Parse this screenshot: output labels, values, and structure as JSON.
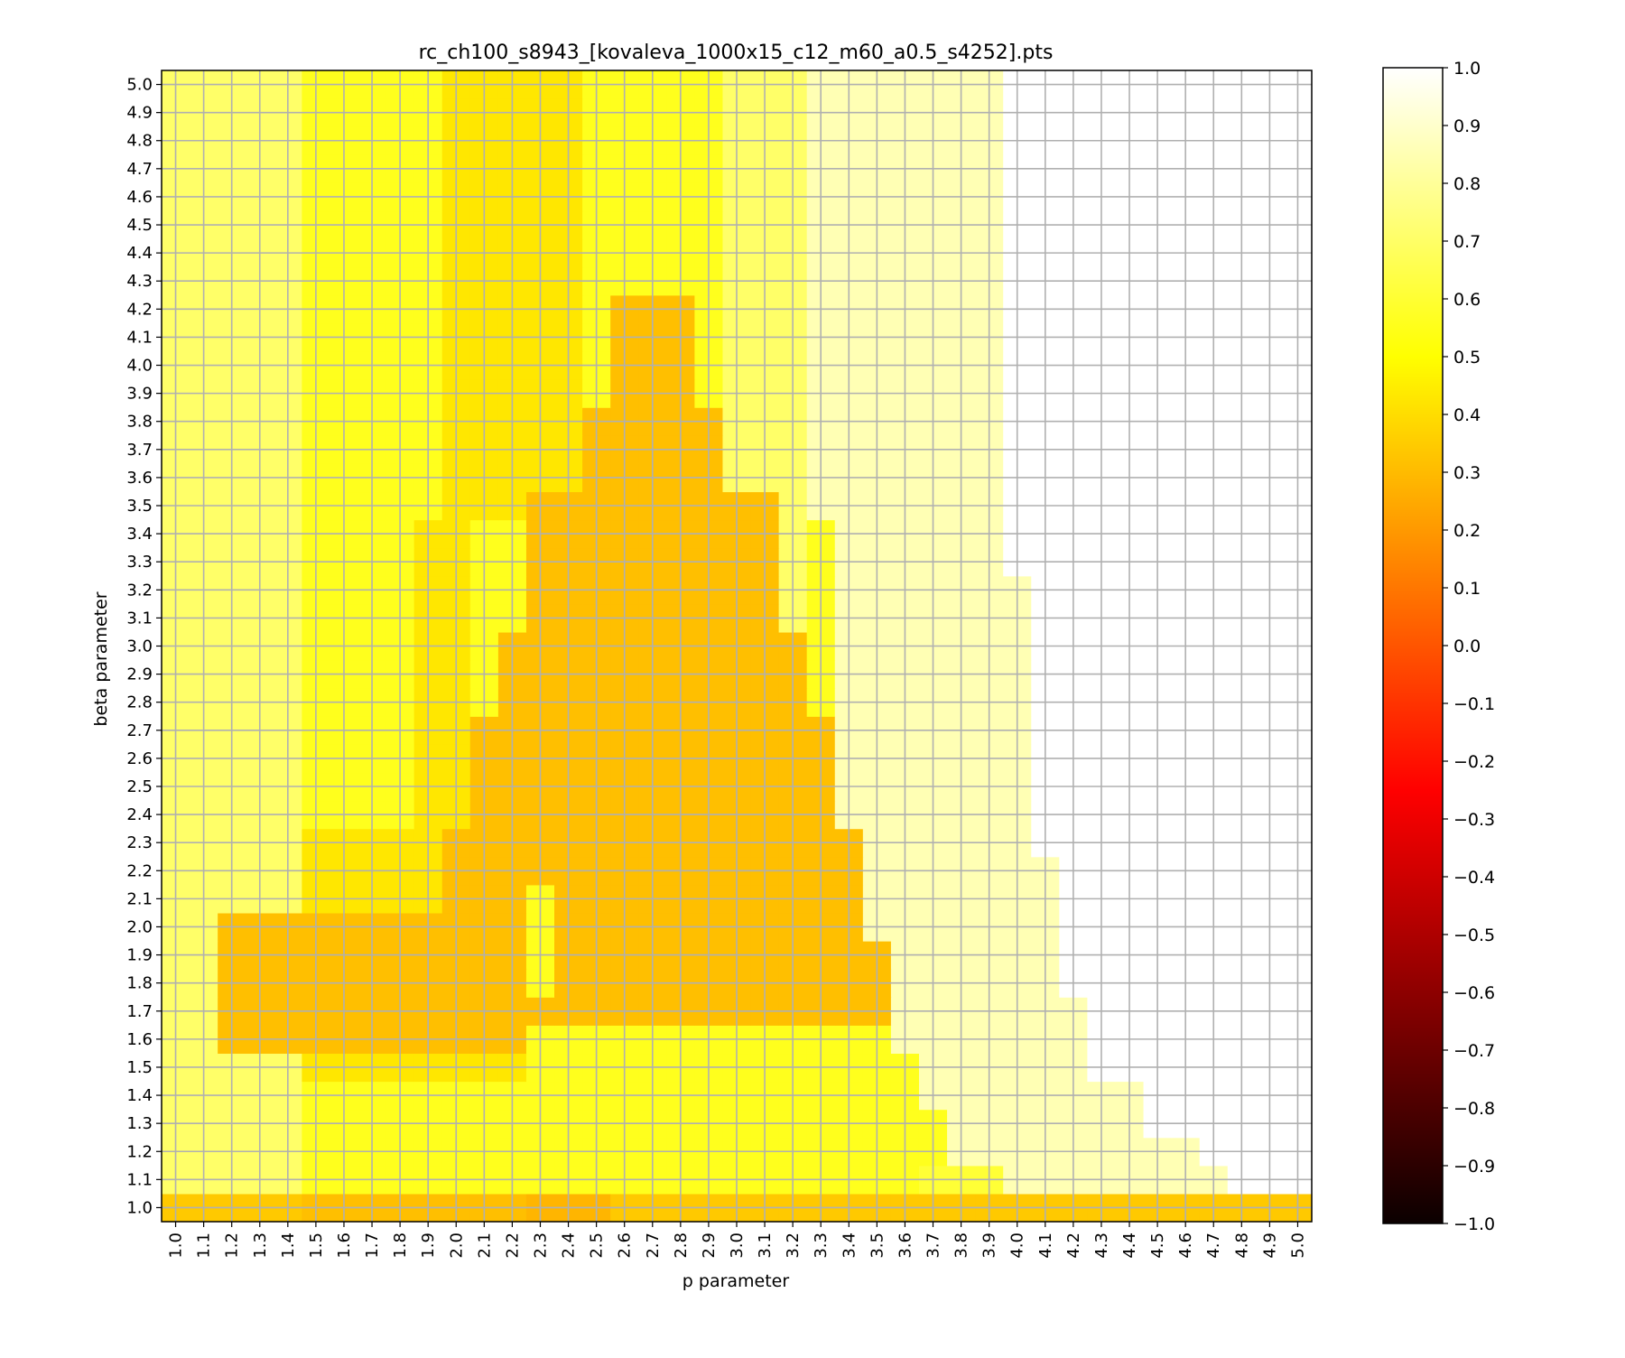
{
  "chart_data": {
    "type": "heatmap",
    "title": "rc_ch100_s8943_[kovaleva_1000x15_c12_m60_a0.5_s4252].pts",
    "xlabel": "p parameter",
    "ylabel": "beta parameter",
    "x_start": 1.0,
    "x_step": 0.1,
    "x_count": 41,
    "y_start": 1.0,
    "y_step": 0.1,
    "y_count": 41,
    "xticklabels": [
      "1.0",
      "1.1",
      "1.2",
      "1.3",
      "1.4",
      "1.5",
      "1.6",
      "1.7",
      "1.8",
      "1.9",
      "2.0",
      "2.1",
      "2.2",
      "2.3",
      "2.4",
      "2.5",
      "2.6",
      "2.7",
      "2.8",
      "2.9",
      "3.0",
      "3.1",
      "3.2",
      "3.3",
      "3.4",
      "3.5",
      "3.6",
      "3.7",
      "3.8",
      "3.9",
      "4.0",
      "4.1",
      "4.2",
      "4.3",
      "4.4",
      "4.5",
      "4.6",
      "4.7",
      "4.8",
      "4.9",
      "5.0"
    ],
    "yticklabels": [
      "1.0",
      "1.1",
      "1.2",
      "1.3",
      "1.4",
      "1.5",
      "1.6",
      "1.7",
      "1.8",
      "1.9",
      "2.0",
      "2.1",
      "2.2",
      "2.3",
      "2.4",
      "2.5",
      "2.6",
      "2.7",
      "2.8",
      "2.9",
      "3.0",
      "3.1",
      "3.2",
      "3.3",
      "3.4",
      "3.5",
      "3.6",
      "3.7",
      "3.8",
      "3.9",
      "4.0",
      "4.1",
      "4.2",
      "4.3",
      "4.4",
      "4.5",
      "4.6",
      "4.7",
      "4.8",
      "4.9",
      "5.0"
    ],
    "colormap": "hot",
    "clim": [
      -1.0,
      1.0
    ],
    "colorbar_ticks": [
      "1.0",
      "0.9",
      "0.8",
      "0.7",
      "0.6",
      "0.5",
      "0.4",
      "0.3",
      "0.2",
      "0.1",
      "0.0",
      "−0.1",
      "−0.2",
      "−0.3",
      "−0.4",
      "−0.5",
      "−0.6",
      "−0.7",
      "−0.8",
      "−0.9",
      "−1.0"
    ],
    "grid": true,
    "colorbar_position": "right",
    "value_levels": {
      "very_high": 1.0,
      "pale": 0.85,
      "light": 0.7,
      "mid": 0.6,
      "yellow": 0.55,
      "low": 0.42,
      "dip": 0.34,
      "orange": 0.3
    },
    "summary": "Approximate values on a 41x41 grid (p 1.0-5.0, beta 1.0-5.0), reconstructed as region rules."
  }
}
